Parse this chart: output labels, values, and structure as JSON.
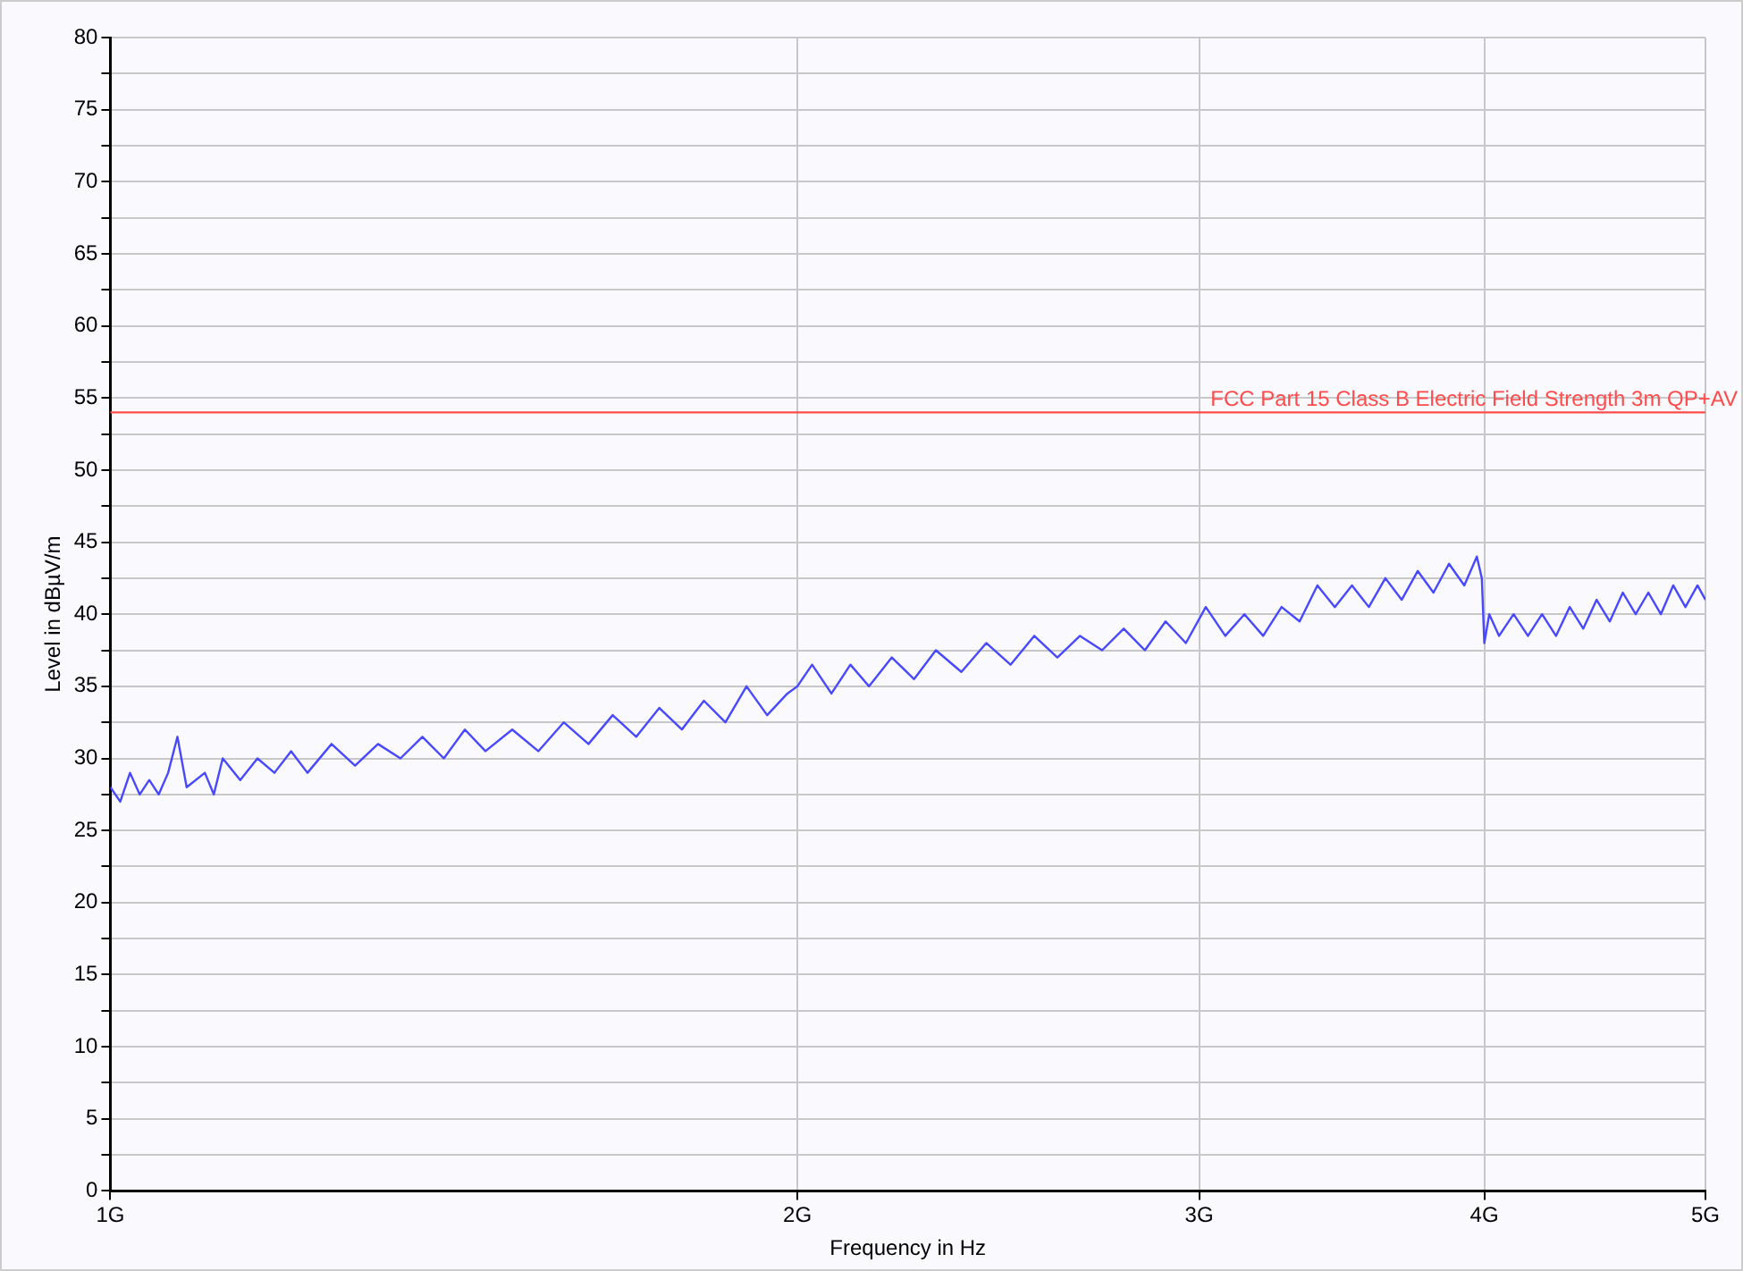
{
  "chart_data": {
    "type": "line",
    "xlabel": "Frequency in Hz",
    "ylabel": "Level in dBµV/m",
    "log": "x",
    "grid": true,
    "legend": false,
    "marker": "none",
    "line_style": "solid",
    "xlim": [
      1,
      5
    ],
    "xticks": [
      {
        "value": 1,
        "label": "1G"
      },
      {
        "value": 2,
        "label": "2G"
      },
      {
        "value": 3,
        "label": "3G"
      },
      {
        "value": 4,
        "label": "4G"
      },
      {
        "value": 5,
        "label": "5G"
      }
    ],
    "ylim": [
      0,
      80
    ],
    "yticks": [
      0,
      {
        "value": 2.5,
        "label": null
      },
      5,
      {
        "value": 7.5,
        "label": null
      },
      10,
      {
        "value": 12.5,
        "label": null
      },
      15,
      {
        "value": 17.5,
        "label": null
      },
      20,
      {
        "value": 22.5,
        "label": null
      },
      25,
      {
        "value": 27.5,
        "label": null
      },
      30,
      {
        "value": 32.5,
        "label": null
      },
      35,
      {
        "value": 37.5,
        "label": null
      },
      40,
      {
        "value": 42.5,
        "label": null
      },
      45,
      {
        "value": 47.5,
        "label": null
      },
      50,
      {
        "value": 52.5,
        "label": null
      },
      55,
      {
        "value": 57.5,
        "label": null
      },
      60,
      {
        "value": 62.5,
        "label": null
      },
      65,
      {
        "value": 67.5,
        "label": null
      },
      70,
      {
        "value": 72.5,
        "label": null
      },
      75,
      {
        "value": 77.5,
        "label": null
      },
      80
    ],
    "ref_lines": [
      {
        "axis": "y",
        "value": 54,
        "label": "FCC Part 15 Class B Electric Field Strength 3m QP+AV",
        "color": "#ff4b4b"
      }
    ],
    "series": [
      {
        "color": "#4848ff",
        "x": [
          1.0,
          1.01,
          1.02,
          1.03,
          1.04,
          1.05,
          1.06,
          1.07,
          1.08,
          1.1,
          1.11,
          1.12,
          1.14,
          1.16,
          1.18,
          1.2,
          1.22,
          1.25,
          1.28,
          1.31,
          1.34,
          1.37,
          1.4,
          1.43,
          1.46,
          1.5,
          1.54,
          1.58,
          1.62,
          1.66,
          1.7,
          1.74,
          1.78,
          1.82,
          1.86,
          1.9,
          1.94,
          1.98,
          2.0,
          2.03,
          2.07,
          2.11,
          2.15,
          2.2,
          2.25,
          2.3,
          2.36,
          2.42,
          2.48,
          2.54,
          2.6,
          2.66,
          2.72,
          2.78,
          2.84,
          2.9,
          2.96,
          3.02,
          3.08,
          3.14,
          3.2,
          3.26,
          3.32,
          3.38,
          3.44,
          3.5,
          3.56,
          3.62,
          3.68,
          3.74,
          3.8,
          3.86,
          3.92,
          3.97,
          3.99,
          4.0,
          4.02,
          4.06,
          4.12,
          4.18,
          4.24,
          4.3,
          4.36,
          4.42,
          4.48,
          4.54,
          4.6,
          4.66,
          4.72,
          4.78,
          4.84,
          4.9,
          4.96,
          5.0
        ],
        "values": [
          28,
          27,
          29,
          27.5,
          28.5,
          27.5,
          29,
          31.5,
          28,
          29,
          27.5,
          30,
          28.5,
          30,
          29,
          30.5,
          29,
          31,
          29.5,
          31,
          30,
          31.5,
          30,
          32,
          30.5,
          32,
          30.5,
          32.5,
          31,
          33,
          31.5,
          33.5,
          32,
          34,
          32.5,
          35,
          33,
          34.5,
          35,
          36.5,
          34.5,
          36.5,
          35,
          37,
          35.5,
          37.5,
          36,
          38,
          36.5,
          38.5,
          37,
          38.5,
          37.5,
          39,
          37.5,
          39.5,
          38,
          40.5,
          38.5,
          40,
          38.5,
          40.5,
          39.5,
          42,
          40.5,
          42,
          40.5,
          42.5,
          41,
          43,
          41.5,
          43.5,
          42,
          44,
          42.5,
          38,
          40,
          38.5,
          40,
          38.5,
          40,
          38.5,
          40.5,
          39,
          41,
          39.5,
          41.5,
          40,
          41.5,
          40,
          42,
          40.5,
          42,
          41
        ]
      }
    ]
  }
}
